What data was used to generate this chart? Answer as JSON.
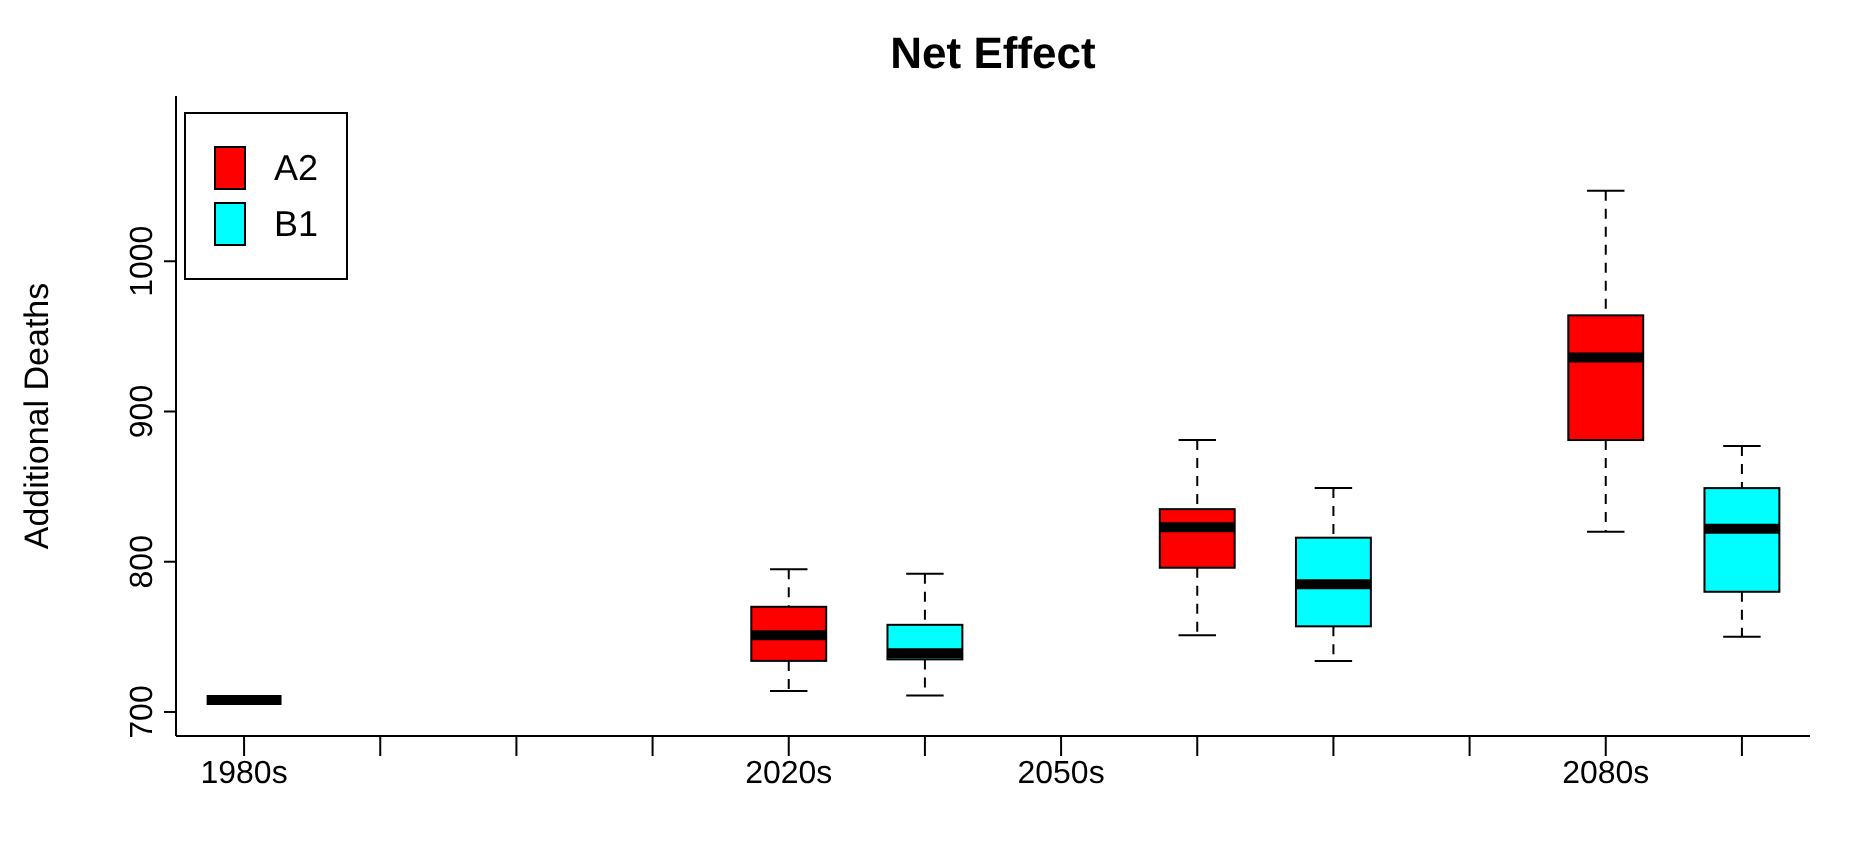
{
  "chart_data": {
    "type": "box",
    "title": "Net Effect",
    "ylabel": "Additional Deaths",
    "categories": [
      "1980s",
      null,
      null,
      null,
      "2020s",
      null,
      "2050s",
      null,
      null,
      null,
      "2080s",
      null
    ],
    "series": [
      {
        "name": "A2",
        "color": "#ff0000",
        "boxes": [
          null,
          null,
          null,
          null,
          {
            "low": 714,
            "q1": 734,
            "median": 751,
            "q3": 770,
            "high": 795
          },
          null,
          null,
          {
            "low": 751,
            "q1": 796,
            "median": 823,
            "q3": 835,
            "high": 881
          },
          null,
          null,
          {
            "low": 820,
            "q1": 881,
            "median": 936,
            "q3": 964,
            "high": 1047
          },
          null
        ]
      },
      {
        "name": "B1",
        "color": "#00ffff",
        "boxes": [
          null,
          null,
          null,
          null,
          null,
          {
            "low": 711,
            "q1": 735,
            "median": 739,
            "q3": 758,
            "high": 792
          },
          null,
          null,
          {
            "low": 734,
            "q1": 757,
            "median": 785,
            "q3": 816,
            "high": 849
          },
          null,
          null,
          {
            "low": 750,
            "q1": 780,
            "median": 822,
            "q3": 849,
            "high": 877
          }
        ]
      },
      {
        "color": "#000000",
        "boxes": [
          {
            "low": 708,
            "q1": 708,
            "median": 708,
            "q3": 708,
            "high": 708
          },
          null,
          null,
          null,
          null,
          null,
          null,
          null,
          null,
          null,
          null,
          null
        ]
      }
    ],
    "ylim": [
      684,
      1110
    ],
    "yticks": [
      700,
      800,
      900,
      1000
    ],
    "legend": "top left"
  }
}
